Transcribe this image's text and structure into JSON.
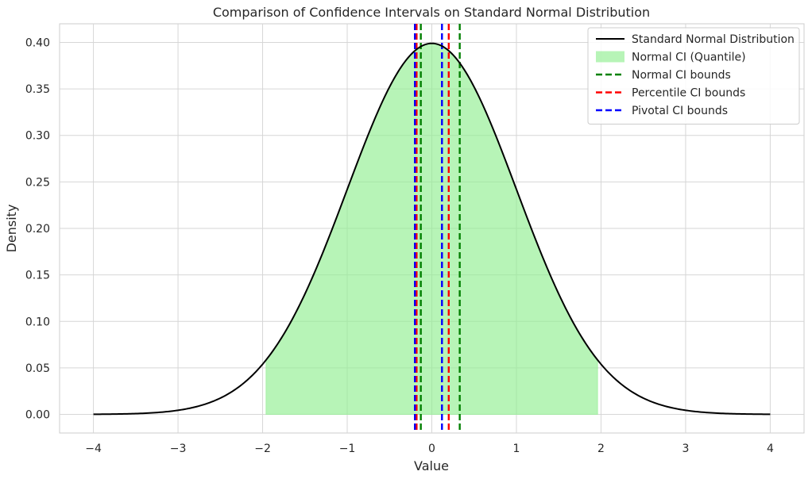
{
  "chart_data": {
    "type": "line",
    "title": "Comparison of Confidence Intervals on Standard Normal Distribution",
    "xlabel": "Value",
    "ylabel": "Density",
    "xlim": [
      -4.4,
      4.4
    ],
    "ylim": [
      -0.02,
      0.42
    ],
    "xticks": [
      -4,
      -3,
      -2,
      -1,
      0,
      1,
      2,
      3,
      4
    ],
    "xtick_labels": [
      "−4",
      "−3",
      "−2",
      "−1",
      "0",
      "1",
      "2",
      "3",
      "4"
    ],
    "yticks": [
      0.0,
      0.05,
      0.1,
      0.15,
      0.2,
      0.25,
      0.3,
      0.35,
      0.4
    ],
    "ytick_labels": [
      "0.00",
      "0.05",
      "0.10",
      "0.15",
      "0.20",
      "0.25",
      "0.30",
      "0.35",
      "0.40"
    ],
    "grid": true,
    "legend_position": "top-right",
    "curve": {
      "name": "Standard Normal Distribution",
      "function": "standard normal pdf",
      "x_range": [
        -4,
        4
      ],
      "color": "#000000"
    },
    "fill": {
      "name": "Normal CI (Quantile)",
      "x_range": [
        -1.96,
        1.96
      ],
      "color": "#90ee90",
      "opacity": 0.65
    },
    "vlines": [
      {
        "name": "Normal CI bounds",
        "values": [
          -0.13,
          0.33
        ],
        "color": "#008000"
      },
      {
        "name": "Percentile CI bounds",
        "values": [
          -0.18,
          0.2
        ],
        "color": "#ff0000"
      },
      {
        "name": "Pivotal CI bounds",
        "values": [
          -0.2,
          0.12
        ],
        "color": "#0000ff"
      }
    ],
    "legend": [
      {
        "label": "Standard Normal Distribution",
        "kind": "line",
        "color": "#000000"
      },
      {
        "label": "Normal CI (Quantile)",
        "kind": "patch",
        "color": "#90ee90"
      },
      {
        "label": "Normal CI bounds",
        "kind": "dashed",
        "color": "#008000"
      },
      {
        "label": "Percentile CI bounds",
        "kind": "dashed",
        "color": "#ff0000"
      },
      {
        "label": "Pivotal CI bounds",
        "kind": "dashed",
        "color": "#0000ff"
      }
    ]
  }
}
